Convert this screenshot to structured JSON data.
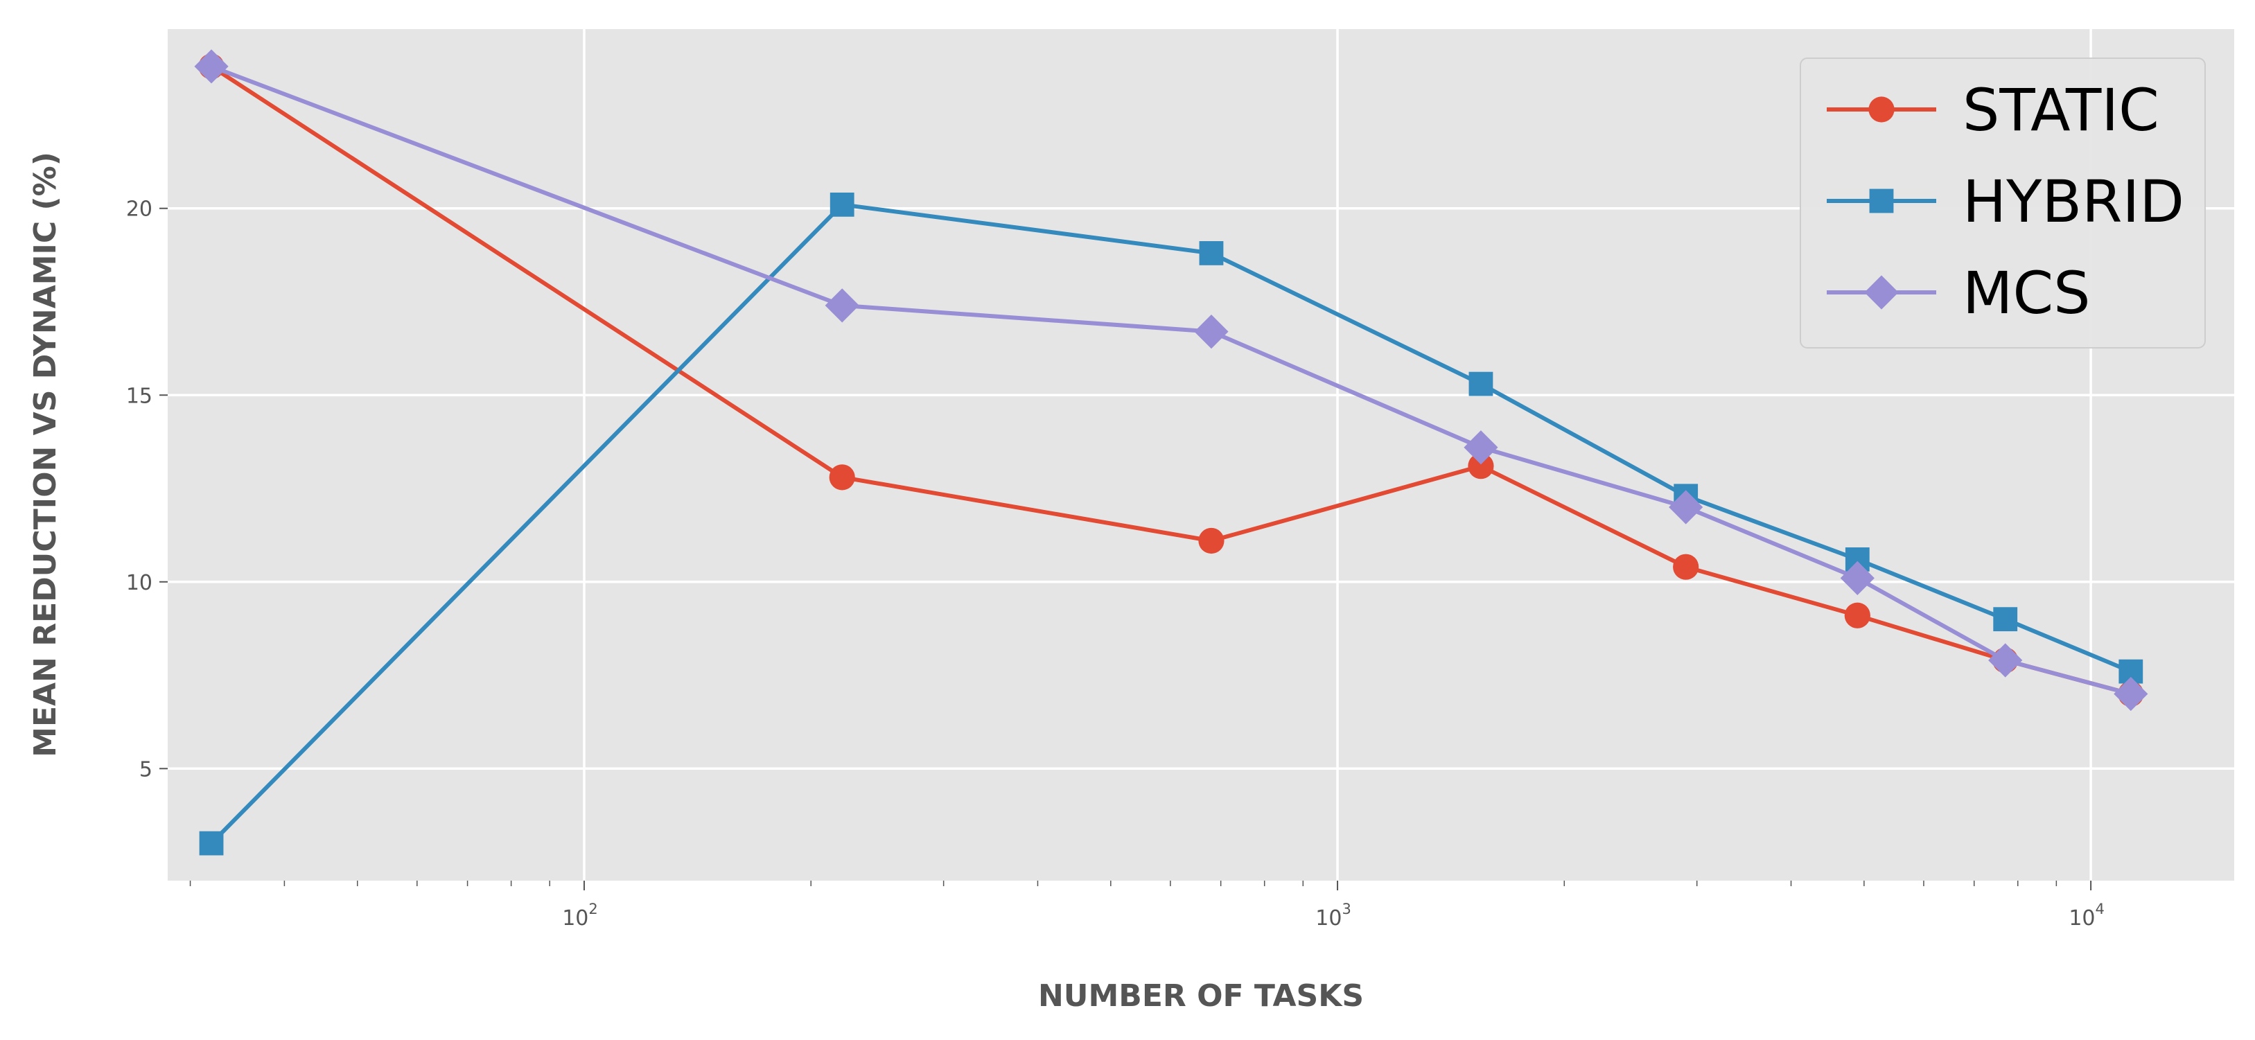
{
  "chart_data": {
    "type": "line",
    "title": "",
    "xlabel": "NUMBER OF TASKS",
    "ylabel": "MEAN REDUCTION VS DYNAMIC (%)",
    "xscale": "log",
    "xlim": [
      28,
      15500
    ],
    "ylim": [
      2.0,
      24.8
    ],
    "grid": true,
    "legend_position": "top-right",
    "xticks": [
      {
        "value": 100,
        "base": "10",
        "exp": "2"
      },
      {
        "value": 1000,
        "base": "10",
        "exp": "3"
      },
      {
        "value": 10000,
        "base": "10",
        "exp": "4"
      }
    ],
    "yticks": [
      {
        "value": 5,
        "label": "5"
      },
      {
        "value": 10,
        "label": "10"
      },
      {
        "value": 15,
        "label": "15"
      },
      {
        "value": 20,
        "label": "20"
      }
    ],
    "series": [
      {
        "name": "STATIC",
        "color": "#E24A33",
        "marker": "circle",
        "x": [
          32,
          220,
          680,
          1550,
          2900,
          4900,
          7700,
          11300
        ],
        "y": [
          23.8,
          12.8,
          11.1,
          13.1,
          10.4,
          9.1,
          7.9,
          7.0
        ]
      },
      {
        "name": "HYBRID",
        "color": "#348ABD",
        "marker": "square",
        "x": [
          32,
          220,
          680,
          1550,
          2900,
          4900,
          7700,
          11300
        ],
        "y": [
          3.0,
          20.1,
          18.8,
          15.3,
          12.3,
          10.6,
          9.0,
          7.6
        ]
      },
      {
        "name": "MCS",
        "color": "#988ED5",
        "marker": "diamond",
        "x": [
          32,
          220,
          680,
          1550,
          2900,
          4900,
          7700,
          11300
        ],
        "y": [
          23.8,
          17.4,
          16.7,
          13.6,
          12.0,
          10.1,
          7.9,
          7.0
        ]
      }
    ]
  }
}
